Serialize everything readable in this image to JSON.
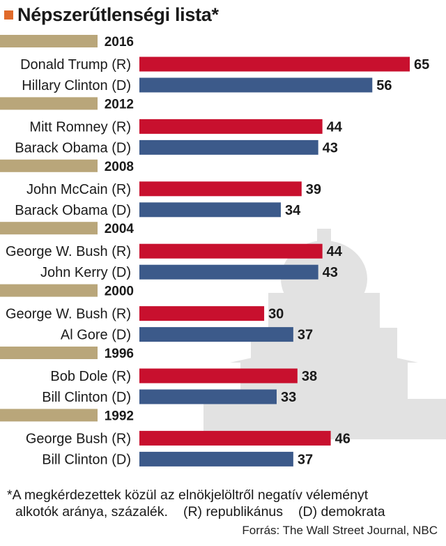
{
  "title": "Népszerűtlenségi lista*",
  "colors": {
    "R": "#c8102e",
    "D": "#3c5a8a",
    "year_band": "#b9a67a",
    "marker": "#e06a2a",
    "capitol": "#e2e2e2"
  },
  "chart_data": {
    "type": "bar",
    "orientation": "horizontal",
    "groups": [
      {
        "year": "2016",
        "bars": [
          {
            "label": "Donald Trump (R)",
            "party": "R",
            "value": 65
          },
          {
            "label": "Hillary Clinton (D)",
            "party": "D",
            "value": 56
          }
        ]
      },
      {
        "year": "2012",
        "bars": [
          {
            "label": "Mitt Romney (R)",
            "party": "R",
            "value": 44
          },
          {
            "label": "Barack Obama (D)",
            "party": "D",
            "value": 43
          }
        ]
      },
      {
        "year": "2008",
        "bars": [
          {
            "label": "John McCain (R)",
            "party": "R",
            "value": 39
          },
          {
            "label": "Barack Obama (D)",
            "party": "D",
            "value": 34
          }
        ]
      },
      {
        "year": "2004",
        "bars": [
          {
            "label": "George W. Bush  (R)",
            "party": "R",
            "value": 44
          },
          {
            "label": "John Kerry (D)",
            "party": "D",
            "value": 43
          }
        ]
      },
      {
        "year": "2000",
        "bars": [
          {
            "label": "George W. Bush (R)",
            "party": "R",
            "value": 30
          },
          {
            "label": "Al Gore (D)",
            "party": "D",
            "value": 37
          }
        ]
      },
      {
        "year": "1996",
        "bars": [
          {
            "label": "Bob Dole (R)",
            "party": "R",
            "value": 38
          },
          {
            "label": "Bill Clinton (D)",
            "party": "D",
            "value": 33
          }
        ]
      },
      {
        "year": "1992",
        "bars": [
          {
            "label": "George Bush (R)",
            "party": "R",
            "value": 46
          },
          {
            "label": "Bill Clinton (D)",
            "party": "D",
            "value": 37
          }
        ]
      }
    ],
    "xlim": [
      0,
      65
    ]
  },
  "footnote": {
    "line1": "*A megkérdezettek közül az elnökjelöltről negatív véleményt",
    "line2_a": "alkotók aránya, százalék.",
    "line2_b": "(R) republikánus",
    "line2_c": "(D) demokrata"
  },
  "source": "Forrás: The Wall Street Journal, NBC"
}
